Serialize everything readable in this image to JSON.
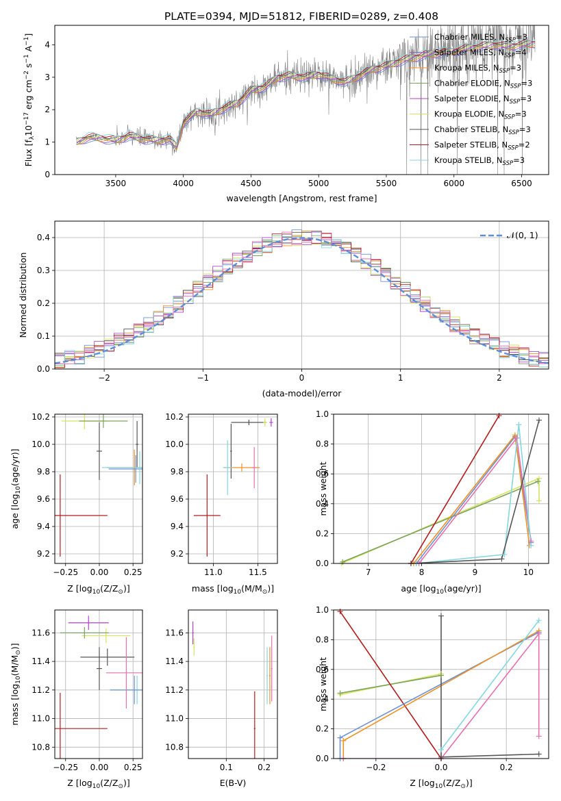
{
  "figure_title": "PLATE=0394, MJD=51812, FIBERID=0289, z=0.408",
  "colors": {
    "Chabrier MILES": "#6d90d4",
    "Salpeter MILES": "#a259c9",
    "Kroupa MILES": "#f0901f",
    "Chabrier ELODIE": "#7aa35a",
    "Salpeter ELODIE": "#b53fd0",
    "Kroupa ELODIE": "#d6e35e",
    "Chabrier STELIB": "#555555",
    "Salpeter STELIB": "#b31b1b",
    "Kroupa STELIB": "#84d6e0",
    "Pink": "#e86fb0",
    "data": "#808080",
    "gaussian": "#5b8dd9"
  },
  "chart_data": [
    {
      "id": "spectrum",
      "type": "line",
      "xlabel": "wavelength [Angstrom, rest frame]",
      "ylabel_main": "Flux [f",
      "ylabel_sub": "λ",
      "ylabel_rest": "10",
      "ylabel_exp": "−17",
      "ylabel_tail": " erg cm",
      "ylabel_exp2": "−2",
      "ylabel_s": " s",
      "ylabel_exp3": "−1",
      "ylabel_a": " A",
      "ylabel_exp4": "−1",
      "ylabel_close": "]",
      "xlim": [
        3050,
        6700
      ],
      "ylim": [
        0,
        4.6
      ],
      "xticks": [
        "3500",
        "4000",
        "4500",
        "5000",
        "5500",
        "6000",
        "6500"
      ],
      "xtick_values": [
        3500,
        4000,
        4500,
        5000,
        5500,
        6000,
        6500
      ],
      "yticks": [
        "0",
        "1",
        "2",
        "3",
        "4"
      ],
      "ytick_values": [
        0,
        1,
        2,
        3,
        4
      ],
      "model_curve": [
        [
          3210,
          1.0
        ],
        [
          3300,
          1.15
        ],
        [
          3400,
          1.12
        ],
        [
          3500,
          1.05
        ],
        [
          3600,
          1.2
        ],
        [
          3700,
          1.1
        ],
        [
          3800,
          1.05
        ],
        [
          3900,
          1.08
        ],
        [
          3950,
          0.85
        ],
        [
          4000,
          1.6
        ],
        [
          4100,
          1.95
        ],
        [
          4200,
          1.85
        ],
        [
          4300,
          2.05
        ],
        [
          4400,
          2.2
        ],
        [
          4500,
          2.6
        ],
        [
          4600,
          2.7
        ],
        [
          4700,
          3.0
        ],
        [
          4800,
          3.05
        ],
        [
          4900,
          3.0
        ],
        [
          5000,
          3.1
        ],
        [
          5100,
          2.95
        ],
        [
          5200,
          2.85
        ],
        [
          5300,
          3.05
        ],
        [
          5400,
          3.25
        ],
        [
          5500,
          3.35
        ],
        [
          5600,
          3.5
        ],
        [
          5700,
          3.6
        ],
        [
          5800,
          3.7
        ],
        [
          5900,
          3.75
        ],
        [
          6000,
          3.8
        ],
        [
          6100,
          3.9
        ],
        [
          6200,
          3.95
        ],
        [
          6300,
          4.0
        ],
        [
          6400,
          3.95
        ],
        [
          6500,
          4.0
        ],
        [
          6600,
          4.05
        ]
      ],
      "legend": [
        {
          "name": "Chabrier MILES, N",
          "sub": "SSP",
          "tail": "=3"
        },
        {
          "name": "Salpeter MILES, N",
          "sub": "SSP",
          "tail": "=4"
        },
        {
          "name": "Kroupa MILES, N",
          "sub": "SSP",
          "tail": "=3"
        },
        {
          "name": "Chabrier ELODIE, N",
          "sub": "SSP",
          "tail": "=3"
        },
        {
          "name": "Salpeter ELODIE, N",
          "sub": "SSP",
          "tail": "=3"
        },
        {
          "name": "Kroupa ELODIE, N",
          "sub": "SSP",
          "tail": "=3"
        },
        {
          "name": "Chabrier STELIB, N",
          "sub": "SSP",
          "tail": "=3"
        },
        {
          "name": "Salpeter STELIB, N",
          "sub": "SSP",
          "tail": "=2"
        },
        {
          "name": "Kroupa STELIB, N",
          "sub": "SSP",
          "tail": "=3"
        }
      ],
      "legend_placement": "top-right"
    },
    {
      "id": "residuals",
      "type": "histogram",
      "xlabel": "(data-model)/error",
      "ylabel": "Normed distribution",
      "xlim": [
        -2.5,
        2.5
      ],
      "ylim": [
        0,
        0.45
      ],
      "xticks": [
        "−2",
        "−1",
        "0",
        "1",
        "2"
      ],
      "xtick_values": [
        -2,
        -1,
        0,
        1,
        2
      ],
      "yticks": [
        "0.0",
        "0.1",
        "0.2",
        "0.3",
        "0.4"
      ],
      "ytick_values": [
        0,
        0.1,
        0.2,
        0.3,
        0.4
      ],
      "bin_width": 0.1,
      "gaussian_label": "𝒩(0, 1)",
      "legend_placement": "top-right",
      "grid": true
    },
    {
      "id": "age_vs_Z",
      "type": "errorbar",
      "xlabel": "Z [log",
      "xlabel_sub": "10",
      "xlabel_tail": "(Z/Z",
      "xlabel_sun": "⊙",
      "xlabel_close": ")]",
      "ylabel": "age  [log",
      "ylabel_sub": "10",
      "ylabel_tail": "(age/yr)]",
      "xlim": [
        -0.33,
        0.32
      ],
      "ylim": [
        9.13,
        10.22
      ],
      "xticks": [
        "−0.25",
        "0.00",
        "0.25"
      ],
      "xtick_values": [
        -0.25,
        0,
        0.25
      ],
      "yticks": [
        "9.2",
        "9.4",
        "9.6",
        "9.8",
        "10.0",
        "10.2"
      ],
      "ytick_values": [
        9.2,
        9.4,
        9.6,
        9.8,
        10.0,
        10.2
      ],
      "grid": true
    },
    {
      "id": "age_vs_mass",
      "type": "errorbar",
      "xlabel": "mass [log",
      "xlabel_sub": "10",
      "xlabel_tail": "(M/M",
      "xlabel_sun": "⊙",
      "xlabel_close": ")]",
      "xlim": [
        10.72,
        11.72
      ],
      "ylim": [
        9.13,
        10.22
      ],
      "xticks": [
        "11.0",
        "11.5"
      ],
      "xtick_values": [
        11.0,
        11.5
      ],
      "yticks": [
        "9.2",
        "9.4",
        "9.6",
        "9.8",
        "10.0",
        "10.2"
      ],
      "ytick_values": [
        9.2,
        9.4,
        9.6,
        9.8,
        10.0,
        10.2
      ],
      "grid": true
    },
    {
      "id": "weight_vs_age",
      "type": "line",
      "xlabel": "age  [log",
      "xlabel_sub": "10",
      "xlabel_tail": "(age/yr)]",
      "ylabel": "mass weight",
      "xlim": [
        6.35,
        10.38
      ],
      "ylim": [
        0,
        1
      ],
      "xticks": [
        "7",
        "8",
        "9",
        "10"
      ],
      "xtick_values": [
        7,
        8,
        9,
        10
      ],
      "yticks": [
        "0.0",
        "0.2",
        "0.4",
        "0.6",
        "0.8",
        "1.0"
      ],
      "ytick_values": [
        0,
        0.2,
        0.4,
        0.6,
        0.8,
        1.0
      ],
      "grid": true
    },
    {
      "id": "mass_vs_Z",
      "type": "errorbar",
      "xlabel": "Z [log",
      "xlabel_sub": "10",
      "xlabel_tail": "(Z/Z",
      "xlabel_sun": "⊙",
      "xlabel_close": ")]",
      "ylabel": "mass [log",
      "ylabel_sub": "10",
      "ylabel_tail": "(M/M",
      "ylabel_sun": "⊙",
      "ylabel_close": ")]",
      "xlim": [
        -0.33,
        0.32
      ],
      "ylim": [
        10.72,
        11.76
      ],
      "xticks": [
        "−0.25",
        "0.00",
        "0.25"
      ],
      "xtick_values": [
        -0.25,
        0,
        0.25
      ],
      "yticks": [
        "10.8",
        "11.0",
        "11.2",
        "11.4",
        "11.6"
      ],
      "ytick_values": [
        10.8,
        11.0,
        11.2,
        11.4,
        11.6
      ],
      "grid": true
    },
    {
      "id": "mass_vs_ebv",
      "type": "errorbar",
      "xlabel": "E(B-V)",
      "xlim": [
        0.0,
        0.235
      ],
      "ylim": [
        10.72,
        11.76
      ],
      "xticks": [
        "0.1",
        "0.2"
      ],
      "xtick_values": [
        0.1,
        0.2
      ],
      "yticks": [
        "10.8",
        "11.0",
        "11.2",
        "11.4",
        "11.6"
      ],
      "ytick_values": [
        10.8,
        11.0,
        11.2,
        11.4,
        11.6
      ],
      "grid": true
    },
    {
      "id": "weight_vs_Z",
      "type": "line",
      "xlabel": "Z [log",
      "xlabel_sub": "10",
      "xlabel_tail": "(Z/Z",
      "xlabel_sun": "⊙",
      "xlabel_close": ")]",
      "ylabel": "mass weight",
      "xlim": [
        -0.33,
        0.33
      ],
      "ylim": [
        0,
        1
      ],
      "xticks": [
        "−0.2",
        "0.0",
        "0.2"
      ],
      "xtick_values": [
        -0.2,
        0,
        0.2
      ],
      "yticks": [
        "0.0",
        "0.2",
        "0.4",
        "0.6",
        "0.8",
        "1.0"
      ],
      "ytick_values": [
        0,
        0.2,
        0.4,
        0.6,
        0.8,
        1.0
      ],
      "grid": true
    }
  ]
}
